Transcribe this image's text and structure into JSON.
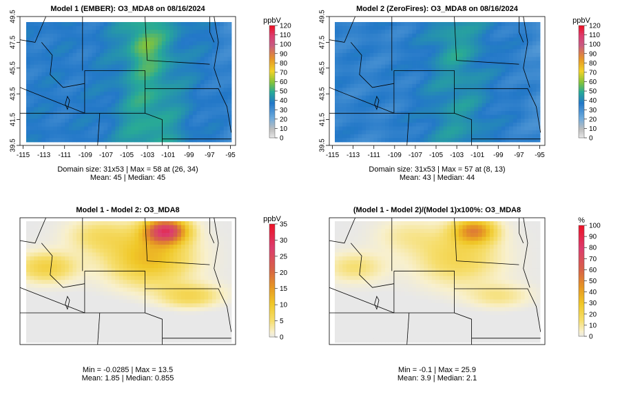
{
  "chart_data": [
    {
      "type": "heatmap",
      "title": "Model 1 (EMBER): O3_MDA8 on 08/16/2024",
      "legend_unit": "ppbV",
      "legend_ticks": [
        "0",
        "10",
        "20",
        "30",
        "40",
        "50",
        "60",
        "70",
        "80",
        "90",
        "100",
        "110",
        "120"
      ],
      "legend_range": [
        0,
        120
      ],
      "colormap": "concentration",
      "x_ticks": [
        "-115",
        "-113",
        "-111",
        "-109",
        "-107",
        "-105",
        "-103",
        "-101",
        "-99",
        "-97",
        "-95"
      ],
      "y_ticks": [
        "39.5",
        "41.5",
        "43.5",
        "45.5",
        "47.5",
        "49.5"
      ],
      "xlim": [
        -115.3,
        -94.5
      ],
      "ylim": [
        39.5,
        49.5
      ],
      "field": "m1",
      "stats_line1": "Domain size: 31x53 | Max = 58 at (26, 34)",
      "stats_line2": "Mean: 45 |  Median: 45"
    },
    {
      "type": "heatmap",
      "title": "Model 2 (ZeroFires): O3_MDA8 on 08/16/2024",
      "legend_unit": "ppbV",
      "legend_ticks": [
        "0",
        "10",
        "20",
        "30",
        "40",
        "50",
        "60",
        "70",
        "80",
        "90",
        "100",
        "110",
        "120"
      ],
      "legend_range": [
        0,
        120
      ],
      "colormap": "concentration",
      "x_ticks": [
        "-115",
        "-113",
        "-111",
        "-109",
        "-107",
        "-105",
        "-103",
        "-101",
        "-99",
        "-97",
        "-95"
      ],
      "y_ticks": [
        "39.5",
        "41.5",
        "43.5",
        "45.5",
        "47.5",
        "49.5"
      ],
      "xlim": [
        -115.3,
        -94.5
      ],
      "ylim": [
        39.5,
        49.5
      ],
      "field": "m2",
      "stats_line1": "Domain size: 31x53 | Max = 57 at (8, 13)",
      "stats_line2": "Mean: 43 |  Median: 44"
    },
    {
      "type": "heatmap",
      "title": "Model 1 - Model 2: O3_MDA8",
      "legend_unit": "ppbV",
      "legend_ticks": [
        "0",
        "5",
        "10",
        "15",
        "20",
        "25",
        "30",
        "35"
      ],
      "legend_range": [
        0,
        35
      ],
      "colormap": "difference",
      "field": "diff",
      "stats_line1": "Min = -0.0285 | Max = 13.5",
      "stats_line2": "Mean: 1.85 |  Median: 0.855"
    },
    {
      "type": "heatmap",
      "title": "(Model 1 - Model 2)/(Model 1)x100%: O3_MDA8",
      "legend_unit": "%",
      "legend_ticks": [
        "0",
        "10",
        "20",
        "30",
        "40",
        "50",
        "60",
        "70",
        "80",
        "90",
        "100"
      ],
      "legend_range": [
        0,
        100
      ],
      "colormap": "difference",
      "field": "pct",
      "stats_line1": "Min = -0.1 | Max = 25.9",
      "stats_line2": "Mean: 3.9 |  Median: 2.1"
    }
  ],
  "colors": {
    "border": "#000000",
    "background": "#ffffff",
    "no_change": "#e6e6e6"
  }
}
